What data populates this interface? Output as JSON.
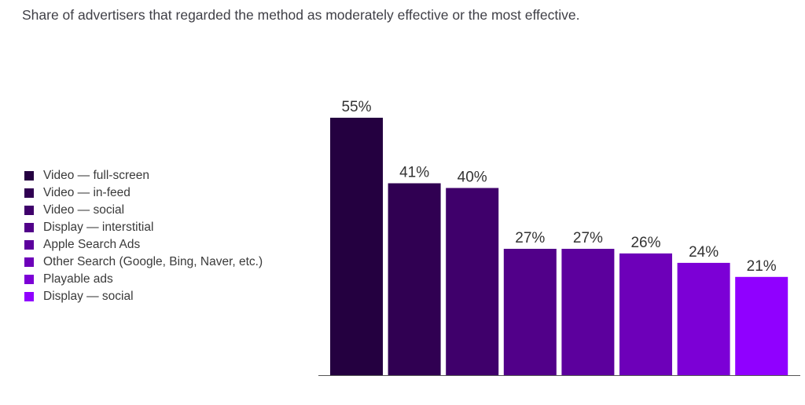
{
  "subtitle": "Share of advertisers that regarded the method as moderately effective or the most effective.",
  "chart_data": {
    "type": "bar",
    "categories": [
      "Video — full-screen",
      "Video — in-feed",
      "Video — social",
      "Display — interstitial",
      "Apple Search Ads",
      "Other Search (Google, Bing, Naver, etc.)",
      "Playable ads",
      "Display — social"
    ],
    "values": [
      55,
      41,
      40,
      27,
      27,
      26,
      24,
      21
    ],
    "value_labels": [
      "55%",
      "41%",
      "40%",
      "27%",
      "27%",
      "26%",
      "24%",
      "21%"
    ],
    "colors": [
      "#240040",
      "#300052",
      "#3f006b",
      "#510089",
      "#5c009d",
      "#6d00b9",
      "#7c00d6",
      "#9000ff"
    ],
    "legend_position": "left",
    "grid": false,
    "xlabel": "",
    "ylabel": "",
    "ylim": [
      0,
      55
    ]
  }
}
